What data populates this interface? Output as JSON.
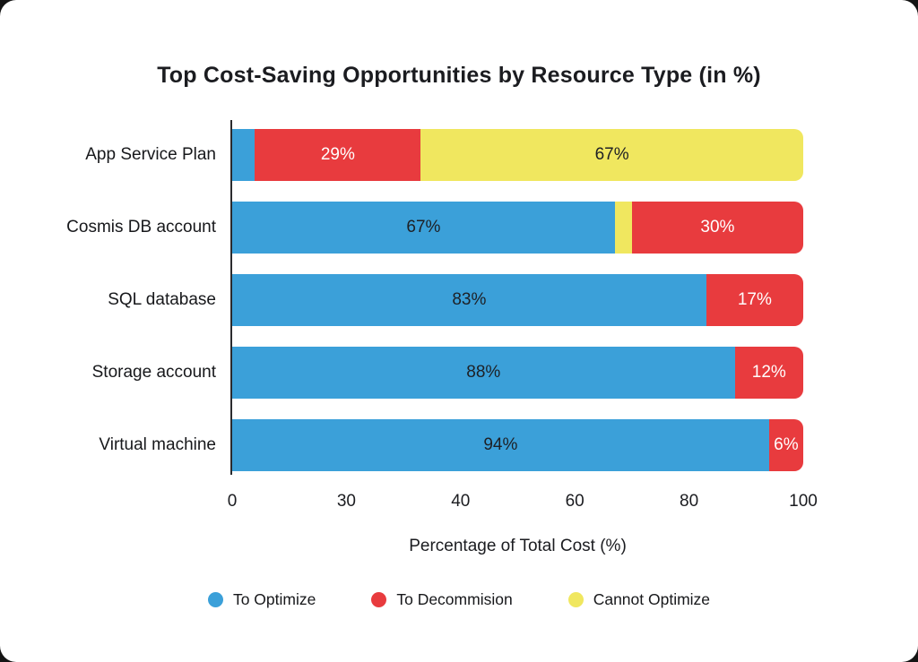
{
  "title": "Top Cost-Saving Opportunities by Resource Type (in %)",
  "colors": {
    "blue": "#3BA0D9",
    "red": "#E83B3E",
    "yellow": "#F0E75F",
    "text_dark": "#1E2025",
    "text_light": "#FFFFFF",
    "axis_line": "#2A2B2E",
    "card_background": "#FFFFFF",
    "page_background": "#141414"
  },
  "chart_data": {
    "type": "bar",
    "orientation": "horizontal",
    "stacked": true,
    "grid": false,
    "title": "Top Cost-Saving Opportunities by Resource Type (in %)",
    "xlabel": "Percentage of Total  Cost (%)",
    "xlim": [
      0,
      100
    ],
    "x_tick_labels": [
      "0",
      "30",
      "40",
      "60",
      "80",
      "100"
    ],
    "legend_position": "bottom",
    "categories": [
      "App Service Plan",
      "Cosmis DB account",
      "SQL database",
      "Storage account",
      "Virtual machine"
    ],
    "series_colors": {
      "To Optimize": "#3BA0D9",
      "To Decommision": "#E83B3E",
      "Cannot Optimize": "#F0E75F"
    },
    "label_text_colors": {
      "To Optimize": "#1E2025",
      "To Decommision": "#FFFFFF",
      "Cannot Optimize": "#1E2025"
    },
    "legend": [
      {
        "label": "To Optimize",
        "color": "#3BA0D9"
      },
      {
        "label": "To Decommision",
        "color": "#E83B3E"
      },
      {
        "label": "Cannot Optimize",
        "color": "#F0E75F"
      }
    ],
    "rows": [
      {
        "category": "App Service Plan",
        "segments": [
          {
            "series": "To Optimize",
            "value": 4,
            "label": ""
          },
          {
            "series": "To Decommision",
            "value": 29,
            "label": "29%"
          },
          {
            "series": "Cannot Optimize",
            "value": 67,
            "label": "67%"
          }
        ]
      },
      {
        "category": "Cosmis DB account",
        "segments": [
          {
            "series": "To Optimize",
            "value": 67,
            "label": "67%"
          },
          {
            "series": "Cannot Optimize",
            "value": 3,
            "label": ""
          },
          {
            "series": "To Decommision",
            "value": 30,
            "label": "30%"
          }
        ]
      },
      {
        "category": "SQL database",
        "segments": [
          {
            "series": "To Optimize",
            "value": 83,
            "label": "83%"
          },
          {
            "series": "To Decommision",
            "value": 17,
            "label": "17%"
          }
        ]
      },
      {
        "category": "Storage account",
        "segments": [
          {
            "series": "To Optimize",
            "value": 88,
            "label": "88%"
          },
          {
            "series": "To Decommision",
            "value": 12,
            "label": "12%"
          }
        ]
      },
      {
        "category": "Virtual machine",
        "segments": [
          {
            "series": "To Optimize",
            "value": 94,
            "label": "94%"
          },
          {
            "series": "To Decommision",
            "value": 6,
            "label": "6%"
          }
        ]
      }
    ]
  }
}
